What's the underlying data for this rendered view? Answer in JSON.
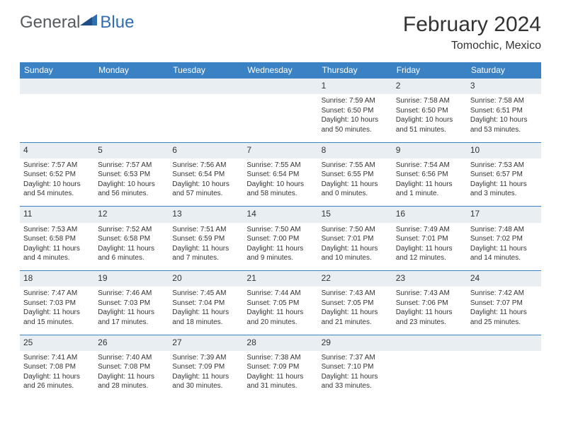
{
  "brand": {
    "part1": "General",
    "part2": "Blue"
  },
  "title": "February 2024",
  "location": "Tomochic, Mexico",
  "colors": {
    "header_bg": "#3b82c4",
    "header_text": "#ffffff",
    "daynum_bg": "#e9eef2",
    "text": "#333333",
    "brand_gray": "#555a5f",
    "brand_blue": "#2f6fb0"
  },
  "dayHeaders": [
    "Sunday",
    "Monday",
    "Tuesday",
    "Wednesday",
    "Thursday",
    "Friday",
    "Saturday"
  ],
  "weeks": [
    [
      {
        "num": "",
        "lines": [
          "",
          "",
          "",
          ""
        ]
      },
      {
        "num": "",
        "lines": [
          "",
          "",
          "",
          ""
        ]
      },
      {
        "num": "",
        "lines": [
          "",
          "",
          "",
          ""
        ]
      },
      {
        "num": "",
        "lines": [
          "",
          "",
          "",
          ""
        ]
      },
      {
        "num": "1",
        "lines": [
          "Sunrise: 7:59 AM",
          "Sunset: 6:50 PM",
          "Daylight: 10 hours",
          "and 50 minutes."
        ]
      },
      {
        "num": "2",
        "lines": [
          "Sunrise: 7:58 AM",
          "Sunset: 6:50 PM",
          "Daylight: 10 hours",
          "and 51 minutes."
        ]
      },
      {
        "num": "3",
        "lines": [
          "Sunrise: 7:58 AM",
          "Sunset: 6:51 PM",
          "Daylight: 10 hours",
          "and 53 minutes."
        ]
      }
    ],
    [
      {
        "num": "4",
        "lines": [
          "Sunrise: 7:57 AM",
          "Sunset: 6:52 PM",
          "Daylight: 10 hours",
          "and 54 minutes."
        ]
      },
      {
        "num": "5",
        "lines": [
          "Sunrise: 7:57 AM",
          "Sunset: 6:53 PM",
          "Daylight: 10 hours",
          "and 56 minutes."
        ]
      },
      {
        "num": "6",
        "lines": [
          "Sunrise: 7:56 AM",
          "Sunset: 6:54 PM",
          "Daylight: 10 hours",
          "and 57 minutes."
        ]
      },
      {
        "num": "7",
        "lines": [
          "Sunrise: 7:55 AM",
          "Sunset: 6:54 PM",
          "Daylight: 10 hours",
          "and 58 minutes."
        ]
      },
      {
        "num": "8",
        "lines": [
          "Sunrise: 7:55 AM",
          "Sunset: 6:55 PM",
          "Daylight: 11 hours",
          "and 0 minutes."
        ]
      },
      {
        "num": "9",
        "lines": [
          "Sunrise: 7:54 AM",
          "Sunset: 6:56 PM",
          "Daylight: 11 hours",
          "and 1 minute."
        ]
      },
      {
        "num": "10",
        "lines": [
          "Sunrise: 7:53 AM",
          "Sunset: 6:57 PM",
          "Daylight: 11 hours",
          "and 3 minutes."
        ]
      }
    ],
    [
      {
        "num": "11",
        "lines": [
          "Sunrise: 7:53 AM",
          "Sunset: 6:58 PM",
          "Daylight: 11 hours",
          "and 4 minutes."
        ]
      },
      {
        "num": "12",
        "lines": [
          "Sunrise: 7:52 AM",
          "Sunset: 6:58 PM",
          "Daylight: 11 hours",
          "and 6 minutes."
        ]
      },
      {
        "num": "13",
        "lines": [
          "Sunrise: 7:51 AM",
          "Sunset: 6:59 PM",
          "Daylight: 11 hours",
          "and 7 minutes."
        ]
      },
      {
        "num": "14",
        "lines": [
          "Sunrise: 7:50 AM",
          "Sunset: 7:00 PM",
          "Daylight: 11 hours",
          "and 9 minutes."
        ]
      },
      {
        "num": "15",
        "lines": [
          "Sunrise: 7:50 AM",
          "Sunset: 7:01 PM",
          "Daylight: 11 hours",
          "and 10 minutes."
        ]
      },
      {
        "num": "16",
        "lines": [
          "Sunrise: 7:49 AM",
          "Sunset: 7:01 PM",
          "Daylight: 11 hours",
          "and 12 minutes."
        ]
      },
      {
        "num": "17",
        "lines": [
          "Sunrise: 7:48 AM",
          "Sunset: 7:02 PM",
          "Daylight: 11 hours",
          "and 14 minutes."
        ]
      }
    ],
    [
      {
        "num": "18",
        "lines": [
          "Sunrise: 7:47 AM",
          "Sunset: 7:03 PM",
          "Daylight: 11 hours",
          "and 15 minutes."
        ]
      },
      {
        "num": "19",
        "lines": [
          "Sunrise: 7:46 AM",
          "Sunset: 7:03 PM",
          "Daylight: 11 hours",
          "and 17 minutes."
        ]
      },
      {
        "num": "20",
        "lines": [
          "Sunrise: 7:45 AM",
          "Sunset: 7:04 PM",
          "Daylight: 11 hours",
          "and 18 minutes."
        ]
      },
      {
        "num": "21",
        "lines": [
          "Sunrise: 7:44 AM",
          "Sunset: 7:05 PM",
          "Daylight: 11 hours",
          "and 20 minutes."
        ]
      },
      {
        "num": "22",
        "lines": [
          "Sunrise: 7:43 AM",
          "Sunset: 7:05 PM",
          "Daylight: 11 hours",
          "and 21 minutes."
        ]
      },
      {
        "num": "23",
        "lines": [
          "Sunrise: 7:43 AM",
          "Sunset: 7:06 PM",
          "Daylight: 11 hours",
          "and 23 minutes."
        ]
      },
      {
        "num": "24",
        "lines": [
          "Sunrise: 7:42 AM",
          "Sunset: 7:07 PM",
          "Daylight: 11 hours",
          "and 25 minutes."
        ]
      }
    ],
    [
      {
        "num": "25",
        "lines": [
          "Sunrise: 7:41 AM",
          "Sunset: 7:08 PM",
          "Daylight: 11 hours",
          "and 26 minutes."
        ]
      },
      {
        "num": "26",
        "lines": [
          "Sunrise: 7:40 AM",
          "Sunset: 7:08 PM",
          "Daylight: 11 hours",
          "and 28 minutes."
        ]
      },
      {
        "num": "27",
        "lines": [
          "Sunrise: 7:39 AM",
          "Sunset: 7:09 PM",
          "Daylight: 11 hours",
          "and 30 minutes."
        ]
      },
      {
        "num": "28",
        "lines": [
          "Sunrise: 7:38 AM",
          "Sunset: 7:09 PM",
          "Daylight: 11 hours",
          "and 31 minutes."
        ]
      },
      {
        "num": "29",
        "lines": [
          "Sunrise: 7:37 AM",
          "Sunset: 7:10 PM",
          "Daylight: 11 hours",
          "and 33 minutes."
        ]
      },
      {
        "num": "",
        "lines": [
          "",
          "",
          "",
          ""
        ]
      },
      {
        "num": "",
        "lines": [
          "",
          "",
          "",
          ""
        ]
      }
    ]
  ]
}
